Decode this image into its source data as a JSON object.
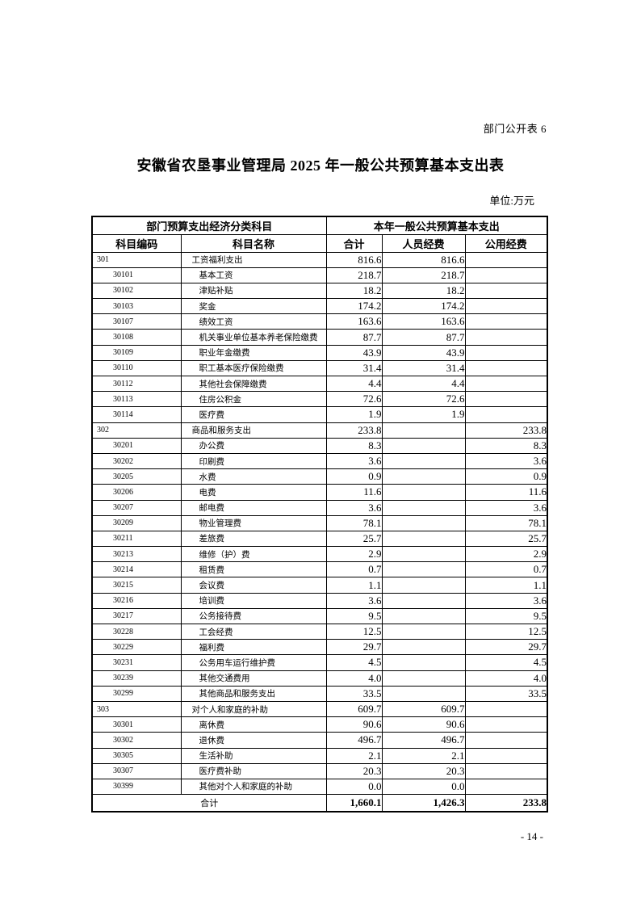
{
  "page": {
    "header_note": "部门公开表 6",
    "title": "安徽省农垦事业管理局 2025 年一般公共预算基本支出表",
    "unit_note": "单位:万元",
    "page_number": "- 14 -"
  },
  "table": {
    "group_headers": [
      "部门预算支出经济分类科目",
      "本年一般公共预算基本支出"
    ],
    "columns": [
      "科目编码",
      "科目名称",
      "合计",
      "人员经费",
      "公用经费"
    ],
    "rows": [
      {
        "level": 0,
        "code": "301",
        "name": "工资福利支出",
        "total": "816.6",
        "personnel": "816.6",
        "public": ""
      },
      {
        "level": 1,
        "code": "30101",
        "name": "基本工资",
        "total": "218.7",
        "personnel": "218.7",
        "public": ""
      },
      {
        "level": 1,
        "code": "30102",
        "name": "津贴补贴",
        "total": "18.2",
        "personnel": "18.2",
        "public": ""
      },
      {
        "level": 1,
        "code": "30103",
        "name": "奖金",
        "total": "174.2",
        "personnel": "174.2",
        "public": ""
      },
      {
        "level": 1,
        "code": "30107",
        "name": "绩效工资",
        "total": "163.6",
        "personnel": "163.6",
        "public": ""
      },
      {
        "level": 1,
        "code": "30108",
        "name": "机关事业单位基本养老保险缴费",
        "total": "87.7",
        "personnel": "87.7",
        "public": ""
      },
      {
        "level": 1,
        "code": "30109",
        "name": "职业年金缴费",
        "total": "43.9",
        "personnel": "43.9",
        "public": ""
      },
      {
        "level": 1,
        "code": "30110",
        "name": "职工基本医疗保险缴费",
        "total": "31.4",
        "personnel": "31.4",
        "public": ""
      },
      {
        "level": 1,
        "code": "30112",
        "name": "其他社会保障缴费",
        "total": "4.4",
        "personnel": "4.4",
        "public": ""
      },
      {
        "level": 1,
        "code": "30113",
        "name": "住房公积金",
        "total": "72.6",
        "personnel": "72.6",
        "public": ""
      },
      {
        "level": 1,
        "code": "30114",
        "name": "医疗费",
        "total": "1.9",
        "personnel": "1.9",
        "public": ""
      },
      {
        "level": 0,
        "code": "302",
        "name": "商品和服务支出",
        "total": "233.8",
        "personnel": "",
        "public": "233.8"
      },
      {
        "level": 1,
        "code": "30201",
        "name": "办公费",
        "total": "8.3",
        "personnel": "",
        "public": "8.3"
      },
      {
        "level": 1,
        "code": "30202",
        "name": "印刷费",
        "total": "3.6",
        "personnel": "",
        "public": "3.6"
      },
      {
        "level": 1,
        "code": "30205",
        "name": "水费",
        "total": "0.9",
        "personnel": "",
        "public": "0.9"
      },
      {
        "level": 1,
        "code": "30206",
        "name": "电费",
        "total": "11.6",
        "personnel": "",
        "public": "11.6"
      },
      {
        "level": 1,
        "code": "30207",
        "name": "邮电费",
        "total": "3.6",
        "personnel": "",
        "public": "3.6"
      },
      {
        "level": 1,
        "code": "30209",
        "name": "物业管理费",
        "total": "78.1",
        "personnel": "",
        "public": "78.1"
      },
      {
        "level": 1,
        "code": "30211",
        "name": "差旅费",
        "total": "25.7",
        "personnel": "",
        "public": "25.7"
      },
      {
        "level": 1,
        "code": "30213",
        "name": "维修（护）费",
        "total": "2.9",
        "personnel": "",
        "public": "2.9"
      },
      {
        "level": 1,
        "code": "30214",
        "name": "租赁费",
        "total": "0.7",
        "personnel": "",
        "public": "0.7"
      },
      {
        "level": 1,
        "code": "30215",
        "name": "会议费",
        "total": "1.1",
        "personnel": "",
        "public": "1.1"
      },
      {
        "level": 1,
        "code": "30216",
        "name": "培训费",
        "total": "3.6",
        "personnel": "",
        "public": "3.6"
      },
      {
        "level": 1,
        "code": "30217",
        "name": "公务接待费",
        "total": "9.5",
        "personnel": "",
        "public": "9.5"
      },
      {
        "level": 1,
        "code": "30228",
        "name": "工会经费",
        "total": "12.5",
        "personnel": "",
        "public": "12.5"
      },
      {
        "level": 1,
        "code": "30229",
        "name": "福利费",
        "total": "29.7",
        "personnel": "",
        "public": "29.7"
      },
      {
        "level": 1,
        "code": "30231",
        "name": "公务用车运行维护费",
        "total": "4.5",
        "personnel": "",
        "public": "4.5"
      },
      {
        "level": 1,
        "code": "30239",
        "name": "其他交通费用",
        "total": "4.0",
        "personnel": "",
        "public": "4.0"
      },
      {
        "level": 1,
        "code": "30299",
        "name": "其他商品和服务支出",
        "total": "33.5",
        "personnel": "",
        "public": "33.5"
      },
      {
        "level": 0,
        "code": "303",
        "name": "对个人和家庭的补助",
        "total": "609.7",
        "personnel": "609.7",
        "public": ""
      },
      {
        "level": 1,
        "code": "30301",
        "name": "离休费",
        "total": "90.6",
        "personnel": "90.6",
        "public": ""
      },
      {
        "level": 1,
        "code": "30302",
        "name": "退休费",
        "total": "496.7",
        "personnel": "496.7",
        "public": ""
      },
      {
        "level": 1,
        "code": "30305",
        "name": "生活补助",
        "total": "2.1",
        "personnel": "2.1",
        "public": ""
      },
      {
        "level": 1,
        "code": "30307",
        "name": "医疗费补助",
        "total": "20.3",
        "personnel": "20.3",
        "public": ""
      },
      {
        "level": 1,
        "code": "30399",
        "name": "其他对个人和家庭的补助",
        "total": "0.0",
        "personnel": "0.0",
        "public": ""
      }
    ],
    "total_row": {
      "label": "合计",
      "total": "1,660.1",
      "personnel": "1,426.3",
      "public": "233.8"
    }
  }
}
